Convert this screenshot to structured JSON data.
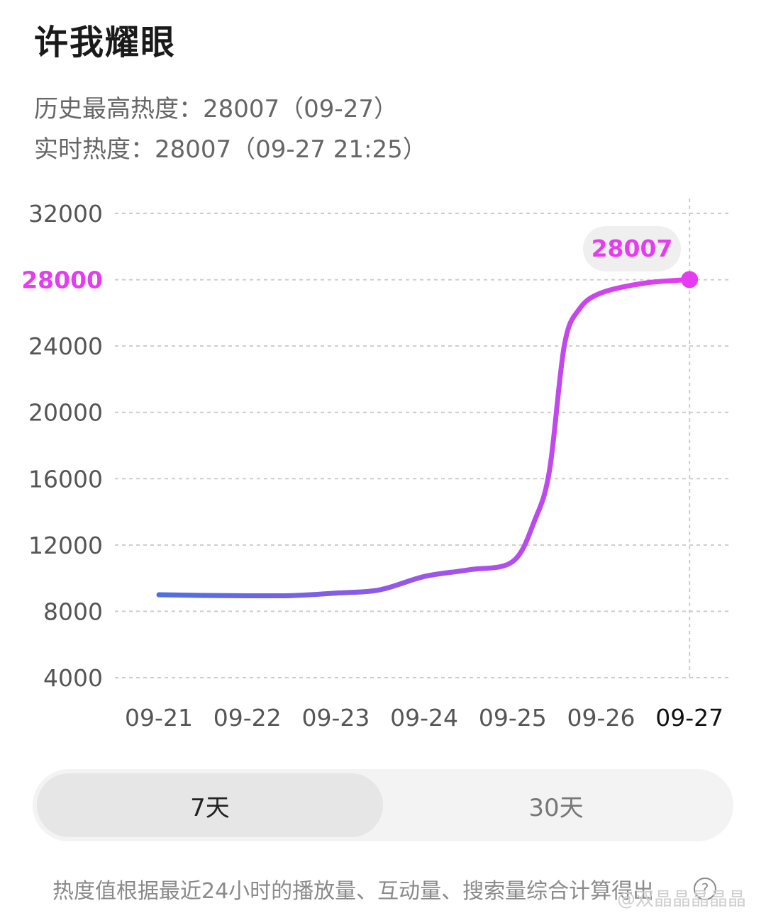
{
  "header": {
    "title": "许我耀眼",
    "history_peak": "历史最高热度：28007（09-27）",
    "realtime": "实时热度：28007（09-27 21:25）"
  },
  "chart_data": {
    "type": "line",
    "x": [
      "09-21",
      "09-22",
      "09-23",
      "09-24",
      "09-25",
      "09-26",
      "09-27"
    ],
    "points": [
      {
        "x": "09-21",
        "y": 9000
      },
      {
        "x": "09-21 12:00",
        "y": 8960
      },
      {
        "x": "09-22",
        "y": 8940
      },
      {
        "x": "09-22 12:00",
        "y": 8950
      },
      {
        "x": "09-23",
        "y": 9100
      },
      {
        "x": "09-23 12:00",
        "y": 9300
      },
      {
        "x": "09-24",
        "y": 10100
      },
      {
        "x": "09-24 12:00",
        "y": 10500
      },
      {
        "x": "09-25",
        "y": 11000
      },
      {
        "x": "09-25 06:00",
        "y": 13500
      },
      {
        "x": "09-25 10:00",
        "y": 16500
      },
      {
        "x": "09-25 14:00",
        "y": 24000
      },
      {
        "x": "09-25 18:00",
        "y": 26200
      },
      {
        "x": "09-26",
        "y": 27200
      },
      {
        "x": "09-26 12:00",
        "y": 27800
      },
      {
        "x": "09-27",
        "y": 28007
      }
    ],
    "yticks": [
      4000,
      8000,
      12000,
      16000,
      20000,
      24000,
      28000,
      32000
    ],
    "highlight_tick": "28000",
    "ylim": [
      4000,
      32000
    ],
    "peak_label": "28007",
    "selected_x": "09-27",
    "grid": true,
    "colors": {
      "line_start": "#4f6fe0",
      "line_end": "#e63cf0",
      "peak": "#e63cf0",
      "grid": "#cccccc",
      "tick_text": "#555555"
    }
  },
  "range_toggle": {
    "tabs": [
      "7天",
      "30天"
    ],
    "selected": "7天"
  },
  "footnote": "热度值根据最近24小时的播放量、互动量、搜索量综合计算得出",
  "info_icon": "info-icon",
  "watermark": "@双晶晶晶晶晶"
}
